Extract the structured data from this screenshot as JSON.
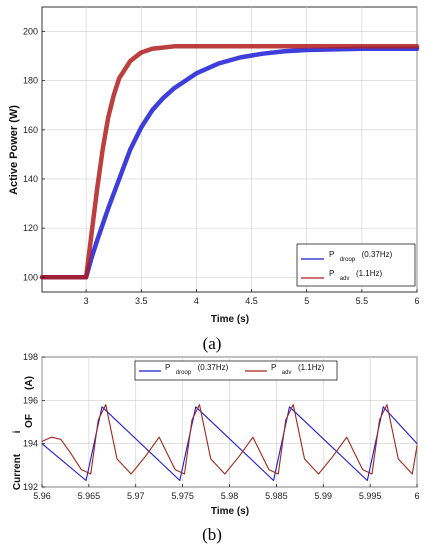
{
  "chart_data": [
    {
      "type": "line",
      "panel_label": "(a)",
      "xlabel": "Time (s)",
      "ylabel": "Active Power  (W)",
      "xlim": [
        2.6,
        6
      ],
      "ylim": [
        94,
        210
      ],
      "xticks": [
        3,
        3.5,
        4,
        4.5,
        5,
        5.5,
        6
      ],
      "xtick_labels": [
        "3",
        "3.5",
        "4",
        "4.5",
        "5",
        "5.5",
        "6"
      ],
      "yticks": [
        100,
        120,
        140,
        160,
        180,
        200
      ],
      "ytick_labels": [
        "100",
        "120",
        "140",
        "160",
        "180",
        "200"
      ],
      "grid": true,
      "legend_position": "bottom-right",
      "series": [
        {
          "name_main": "P",
          "name_sub": "droop",
          "name_suffix": "(0.37Hz)",
          "color": "#1c1cd6",
          "x": [
            2.6,
            3.0,
            3.05,
            3.1,
            3.2,
            3.3,
            3.4,
            3.5,
            3.6,
            3.7,
            3.8,
            3.9,
            4.0,
            4.2,
            4.4,
            4.6,
            4.8,
            5.0,
            5.5,
            6.0
          ],
          "y": [
            100,
            100,
            108,
            115,
            128,
            140,
            152,
            161,
            168,
            173,
            177,
            180,
            183,
            187,
            189.5,
            191,
            192,
            192.5,
            193,
            193
          ]
        },
        {
          "name_main": "P",
          "name_sub": "adv",
          "name_suffix": "(1.1Hz)",
          "color": "#b01c1c",
          "x": [
            2.6,
            3.0,
            3.05,
            3.1,
            3.15,
            3.2,
            3.25,
            3.3,
            3.4,
            3.5,
            3.6,
            3.8,
            4.0,
            4.5,
            5.0,
            5.5,
            6.0
          ],
          "y": [
            100,
            100,
            118,
            136,
            152,
            165,
            174,
            181,
            188,
            191.5,
            193,
            194,
            194,
            194,
            194,
            194,
            194
          ]
        }
      ]
    },
    {
      "type": "line",
      "panel_label": "(b)",
      "xlabel": "Time (s)",
      "ylabel_words": [
        "Current",
        "i",
        "OF",
        "(A)"
      ],
      "xlim": [
        5.96,
        6.0
      ],
      "ylim": [
        192,
        198
      ],
      "xticks": [
        5.96,
        5.965,
        5.97,
        5.975,
        5.98,
        5.985,
        5.99,
        5.995,
        6.0
      ],
      "xtick_labels": [
        "5.96",
        "5.965",
        "5.97",
        "5.975",
        "5.98",
        "5.985",
        "5.99",
        "5.995",
        "6"
      ],
      "yticks": [
        192,
        194,
        196,
        198
      ],
      "ytick_labels": [
        "192",
        "194",
        "196",
        "198"
      ],
      "grid": true,
      "legend_position": "top-center",
      "series": [
        {
          "name_main": "P",
          "name_sub": "droop",
          "name_suffix": "(0.37Hz)",
          "color": "#1c1cd6",
          "x": [
            5.96,
            5.9647,
            5.9664,
            5.9747,
            5.9764,
            5.9847,
            5.9864,
            5.9947,
            5.9964,
            6.0
          ],
          "y": [
            194.0,
            192.3,
            195.7,
            192.3,
            195.7,
            192.3,
            195.7,
            192.3,
            195.7,
            194.0
          ]
        },
        {
          "name_main": "P",
          "name_sub": "adv",
          "name_suffix": "(1.1Hz)",
          "color": "#a0281e",
          "x": [
            5.96,
            5.961,
            5.962,
            5.963,
            5.9642,
            5.9652,
            5.966,
            5.9668,
            5.968,
            5.9695,
            5.971,
            5.9725,
            5.9742,
            5.9752,
            5.976,
            5.9768,
            5.978,
            5.9795,
            5.981,
            5.9825,
            5.9842,
            5.9852,
            5.986,
            5.9868,
            5.988,
            5.9895,
            5.991,
            5.9925,
            5.9942,
            5.9952,
            5.996,
            5.9968,
            5.998,
            5.9995,
            6.0
          ],
          "y": [
            194.1,
            194.3,
            194.2,
            193.6,
            192.8,
            192.6,
            195.1,
            195.8,
            193.3,
            192.6,
            193.4,
            194.3,
            192.8,
            192.6,
            195.1,
            195.8,
            193.3,
            192.6,
            193.4,
            194.3,
            192.8,
            192.6,
            195.1,
            195.8,
            193.3,
            192.6,
            193.4,
            194.3,
            192.8,
            192.6,
            195.1,
            195.8,
            193.3,
            192.6,
            193.9
          ]
        }
      ]
    }
  ]
}
